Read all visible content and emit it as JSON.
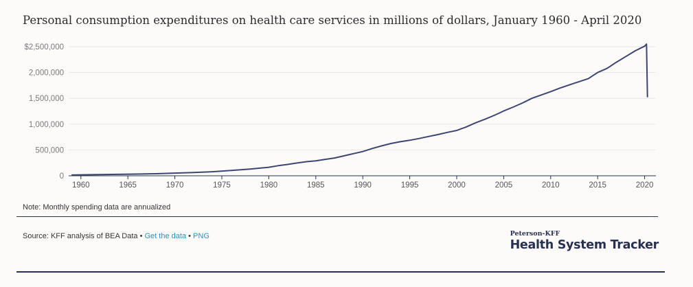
{
  "title": "Personal consumption expenditures on health care services in millions of dollars, January 1960 - April 2020",
  "note": "Note: Monthly spending data are annualized",
  "source": {
    "prefix": "Source: KFF analysis of BEA Data",
    "separator": "•",
    "get_data_label": "Get the data",
    "png_label": "PNG"
  },
  "brand": {
    "top": "Peterson-KFF",
    "main": "Health System Tracker"
  },
  "colors": {
    "line": "#3b4670",
    "grid": "#e6e6e6",
    "axis": "#27304f",
    "link": "#2b8fc3"
  },
  "chart_data": {
    "type": "line",
    "title": "Personal consumption expenditures on health care services in millions of dollars, January 1960 - April 2020",
    "xlabel": "",
    "ylabel": "",
    "xlim": [
      1958.7,
      2021.2
    ],
    "ylim": [
      0,
      2500000
    ],
    "y_ticks": [
      0,
      500000,
      1000000,
      1500000,
      2000000,
      2500000
    ],
    "y_tick_labels": [
      "0",
      "500,000",
      "1,000,000",
      "1,500,000",
      "2,000,000",
      "$2,500,000"
    ],
    "x_ticks": [
      1960,
      1965,
      1970,
      1975,
      1980,
      1985,
      1990,
      1995,
      2000,
      2005,
      2010,
      2015,
      2020
    ],
    "grid": true,
    "legend": "none",
    "series": [
      {
        "x": [
          1959.0,
          1960.0,
          1962.0,
          1964.0,
          1966.0,
          1968.0,
          1970.0,
          1972.0,
          1974.0,
          1976.0,
          1978.0,
          1980.0,
          1981.0,
          1982.0,
          1983.0,
          1984.0,
          1985.0,
          1986.0,
          1987.0,
          1988.0,
          1989.0,
          1990.0,
          1991.0,
          1992.0,
          1993.0,
          1994.0,
          1995.0,
          1996.0,
          1997.0,
          1998.0,
          1999.0,
          2000.0,
          2001.0,
          2002.0,
          2003.0,
          2004.0,
          2005.0,
          2006.0,
          2007.0,
          2008.0,
          2009.0,
          2010.0,
          2011.0,
          2012.0,
          2013.0,
          2014.0,
          2015.0,
          2016.0,
          2017.0,
          2018.0,
          2019.0,
          2020.0,
          2020.2,
          2020.3
        ],
        "y": [
          15000,
          18000,
          22000,
          28000,
          33000,
          40000,
          52000,
          63000,
          78000,
          102000,
          130000,
          165000,
          195000,
          220000,
          248000,
          273000,
          290000,
          318000,
          345000,
          385000,
          428000,
          470000,
          528000,
          578000,
          625000,
          660000,
          688000,
          722000,
          760000,
          798000,
          840000,
          878000,
          945000,
          1025000,
          1095000,
          1170000,
          1255000,
          1330000,
          1410000,
          1500000,
          1565000,
          1630000,
          1700000,
          1760000,
          1820000,
          1880000,
          2000000,
          2080000,
          2200000,
          2310000,
          2420000,
          2510000,
          2550000,
          1520000
        ]
      }
    ]
  }
}
